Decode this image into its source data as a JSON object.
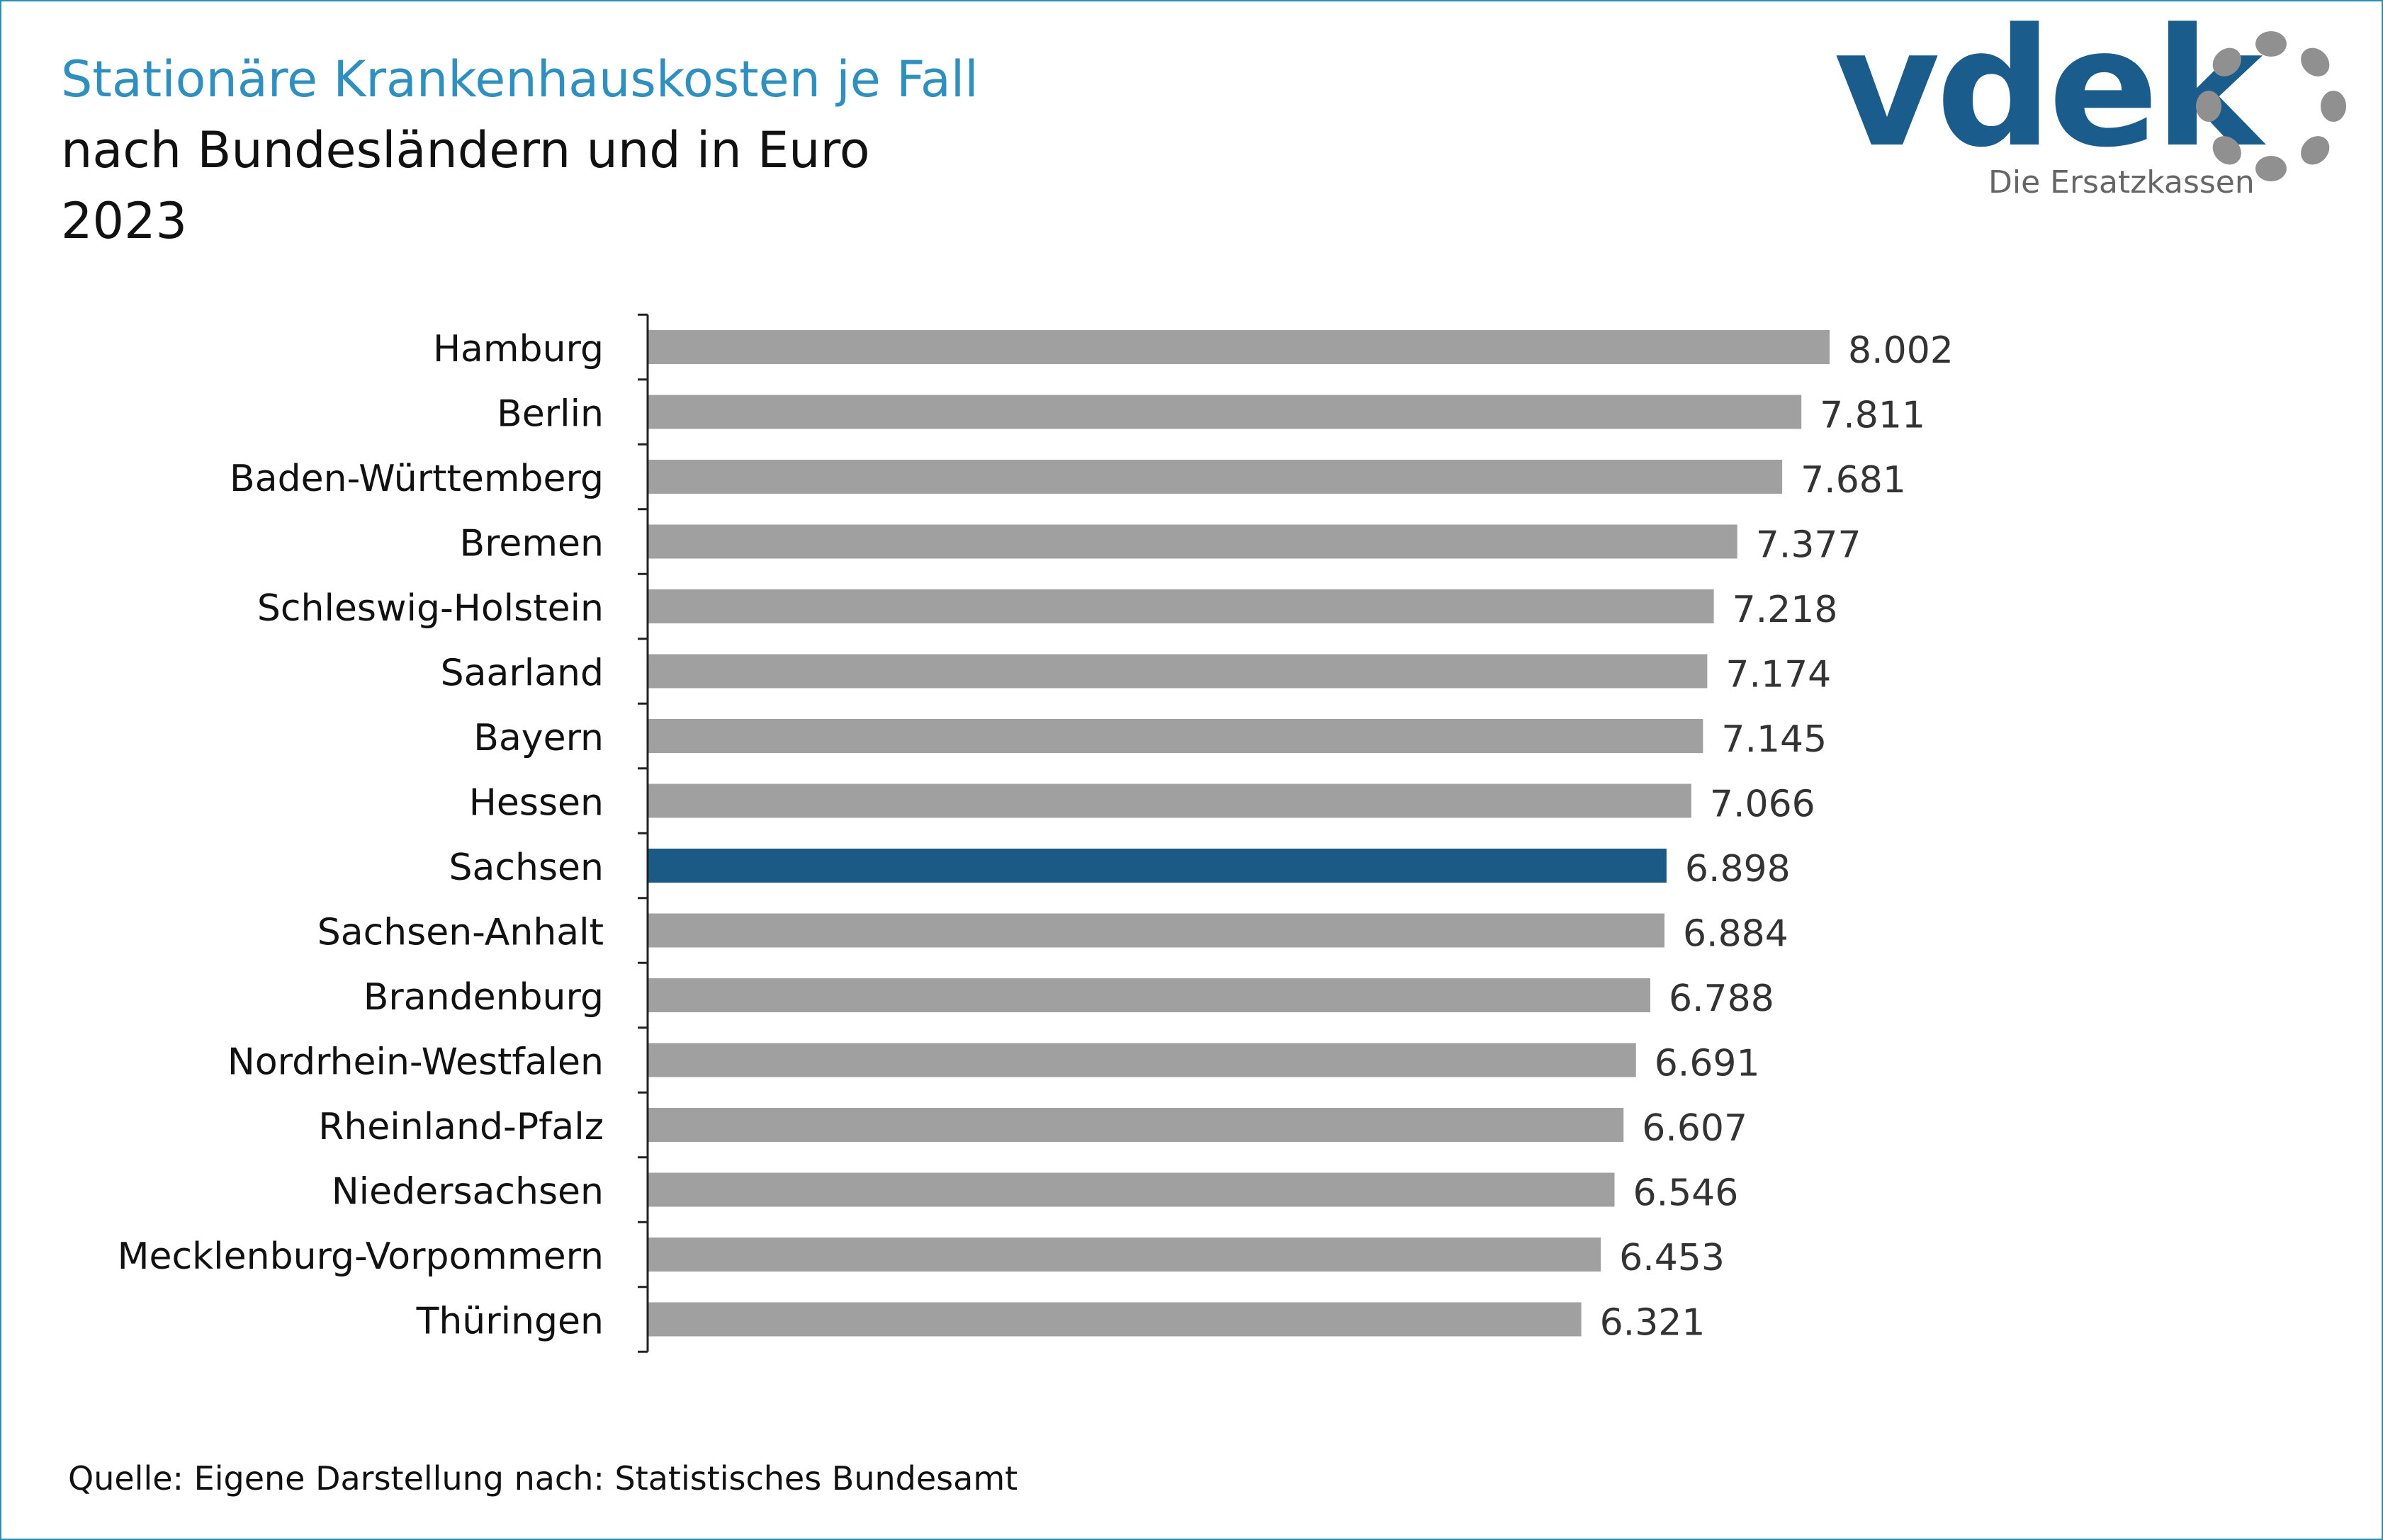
{
  "header": {
    "title": "Stationäre Krankenhauskosten je Fall",
    "subtitle": "nach Bundesländern und in Euro",
    "year": "2023"
  },
  "logo": {
    "wordmark": "vdek",
    "tagline": "Die Ersatzkassen"
  },
  "footer": {
    "source": "Quelle: Eigene Darstellung nach: Statistisches Bundesamt"
  },
  "colors": {
    "bar": "#a0a0a0",
    "highlight": "#1a5a85",
    "title": "#2f8fbf",
    "logo": "#1a5c8c",
    "logo_ring": "#909090"
  },
  "chart_data": {
    "type": "bar",
    "orientation": "horizontal",
    "categories": [
      "Hamburg",
      "Berlin",
      "Baden-Württemberg",
      "Bremen",
      "Schleswig-Holstein",
      "Saarland",
      "Bayern",
      "Hessen",
      "Sachsen",
      "Sachsen-Anhalt",
      "Brandenburg",
      "Nordrhein-Westfalen",
      "Rheinland-Pfalz",
      "Niedersachsen",
      "Mecklenburg-Vorpommern",
      "Thüringen"
    ],
    "values": [
      8002,
      7811,
      7681,
      7377,
      7218,
      7174,
      7145,
      7066,
      6898,
      6884,
      6788,
      6691,
      6607,
      6546,
      6453,
      6321
    ],
    "value_labels": [
      "8.002",
      "7.811",
      "7.681",
      "7.377",
      "7.218",
      "7.174",
      "7.145",
      "7.066",
      "6.898",
      "6.884",
      "6.788",
      "6.691",
      "6.607",
      "6.546",
      "6.453",
      "6.321"
    ],
    "highlight": "Sachsen",
    "xlim": [
      0,
      8002
    ],
    "grid": false,
    "legend": "none"
  }
}
